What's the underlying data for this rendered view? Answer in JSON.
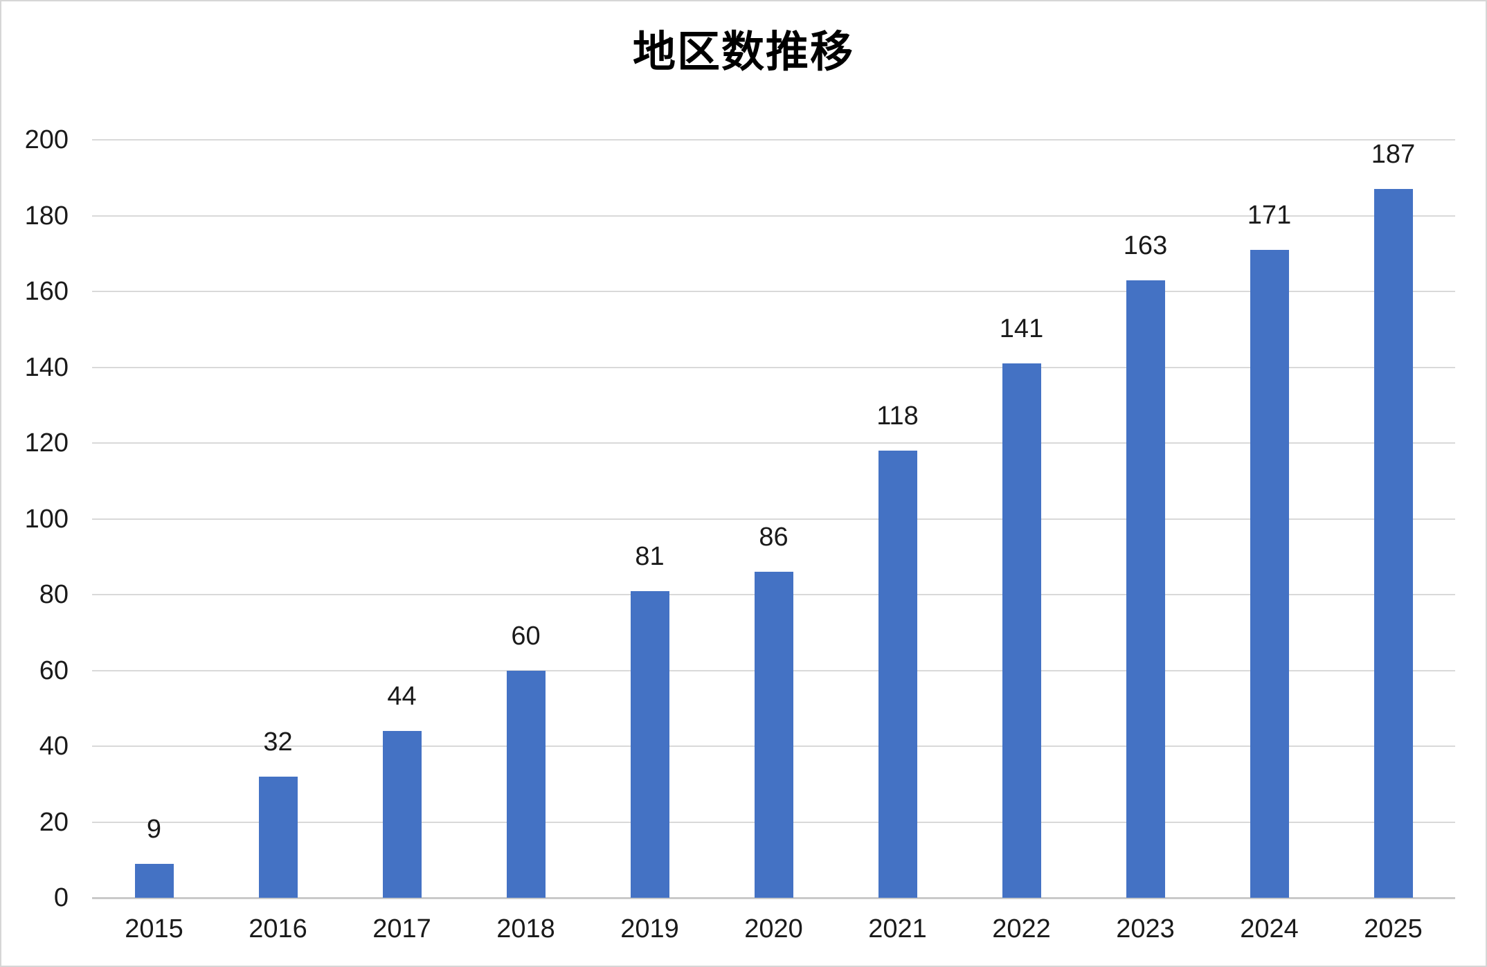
{
  "chart_data": {
    "type": "bar",
    "title": "地区数推移",
    "categories": [
      "2015",
      "2016",
      "2017",
      "2018",
      "2019",
      "2020",
      "2021",
      "2022",
      "2023",
      "2024",
      "2025"
    ],
    "values": [
      9,
      32,
      44,
      60,
      81,
      86,
      118,
      141,
      163,
      171,
      187
    ],
    "data_labels": [
      "9",
      "32",
      "44",
      "60",
      "81",
      "86",
      "118",
      "141",
      "163",
      "171",
      "187"
    ],
    "xlabel": "",
    "ylabel": "",
    "ylim": [
      0,
      200
    ],
    "ytick_step": 20,
    "yticks": [
      "0",
      "20",
      "40",
      "60",
      "80",
      "100",
      "120",
      "140",
      "160",
      "180",
      "200"
    ],
    "grid": true,
    "legend": "none",
    "colors": {
      "bar": "#4472C4",
      "gridline": "#d9d9d9",
      "axis_line": "#c9c9c9",
      "label_text": "#1a1a1a",
      "title_text": "#000000",
      "background": "#ffffff",
      "frame_border": "#d6d6d6"
    }
  }
}
